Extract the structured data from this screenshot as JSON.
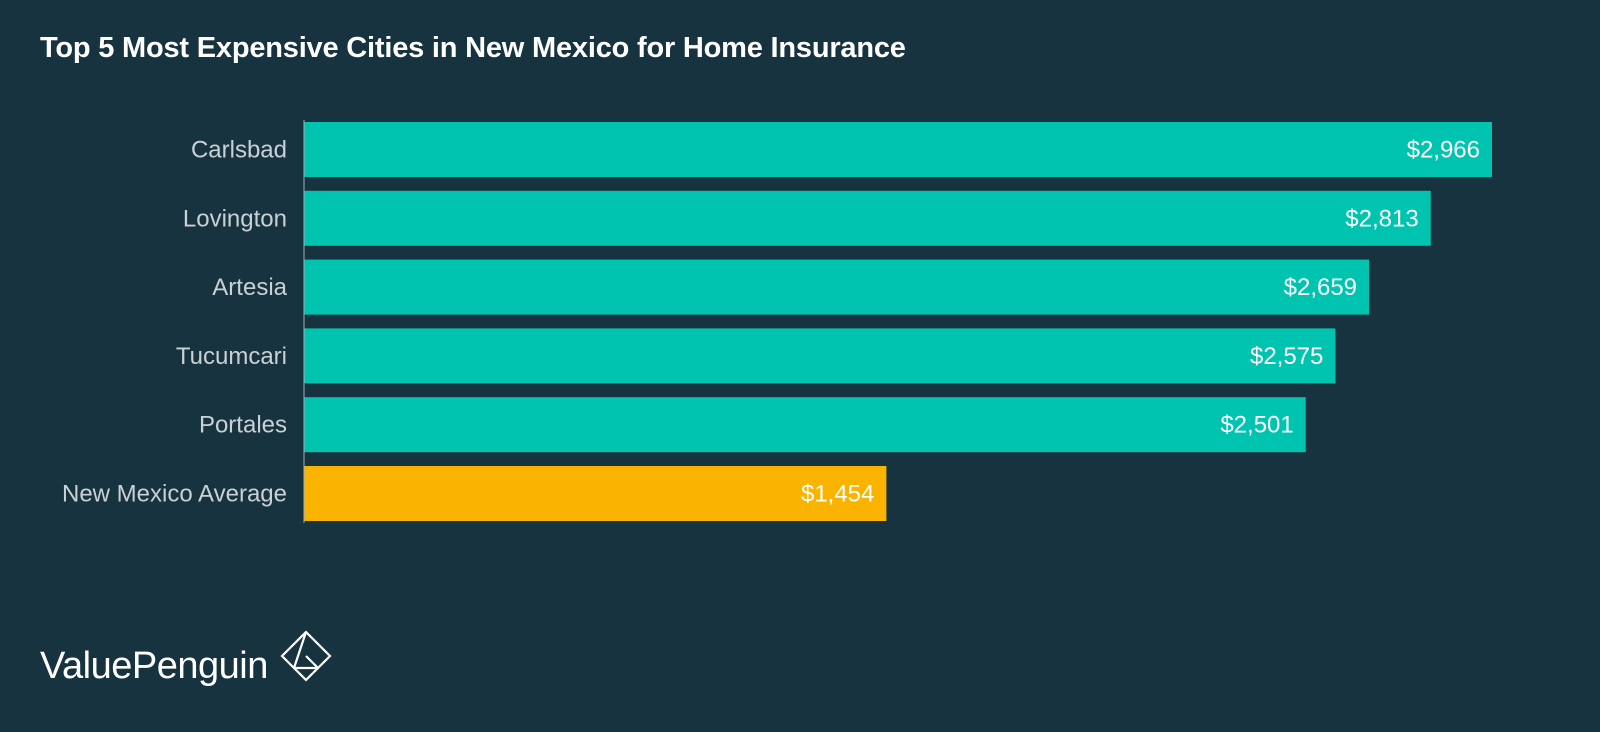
{
  "chart_data": {
    "type": "bar",
    "orientation": "horizontal",
    "title": "Top 5 Most Expensive Cities in New Mexico for Home Insurance",
    "categories": [
      "Carlsbad",
      "Lovington",
      "Artesia",
      "Tucumcari",
      "Portales",
      "New Mexico Average"
    ],
    "values": [
      2966,
      2813,
      2659,
      2575,
      2501,
      1454
    ],
    "value_labels": [
      "$2,966",
      "$2,813",
      "$2,659",
      "$2,575",
      "$2,501",
      "$1,454"
    ],
    "xlim": [
      0,
      2966
    ],
    "grid": false,
    "colors": [
      "#00c4b0",
      "#00c4b0",
      "#00c4b0",
      "#00c4b0",
      "#00c4b0",
      "#fab400"
    ]
  },
  "brand": {
    "name": "ValuePenguin",
    "logo_icon": "valuepenguin-diamond-logo"
  }
}
